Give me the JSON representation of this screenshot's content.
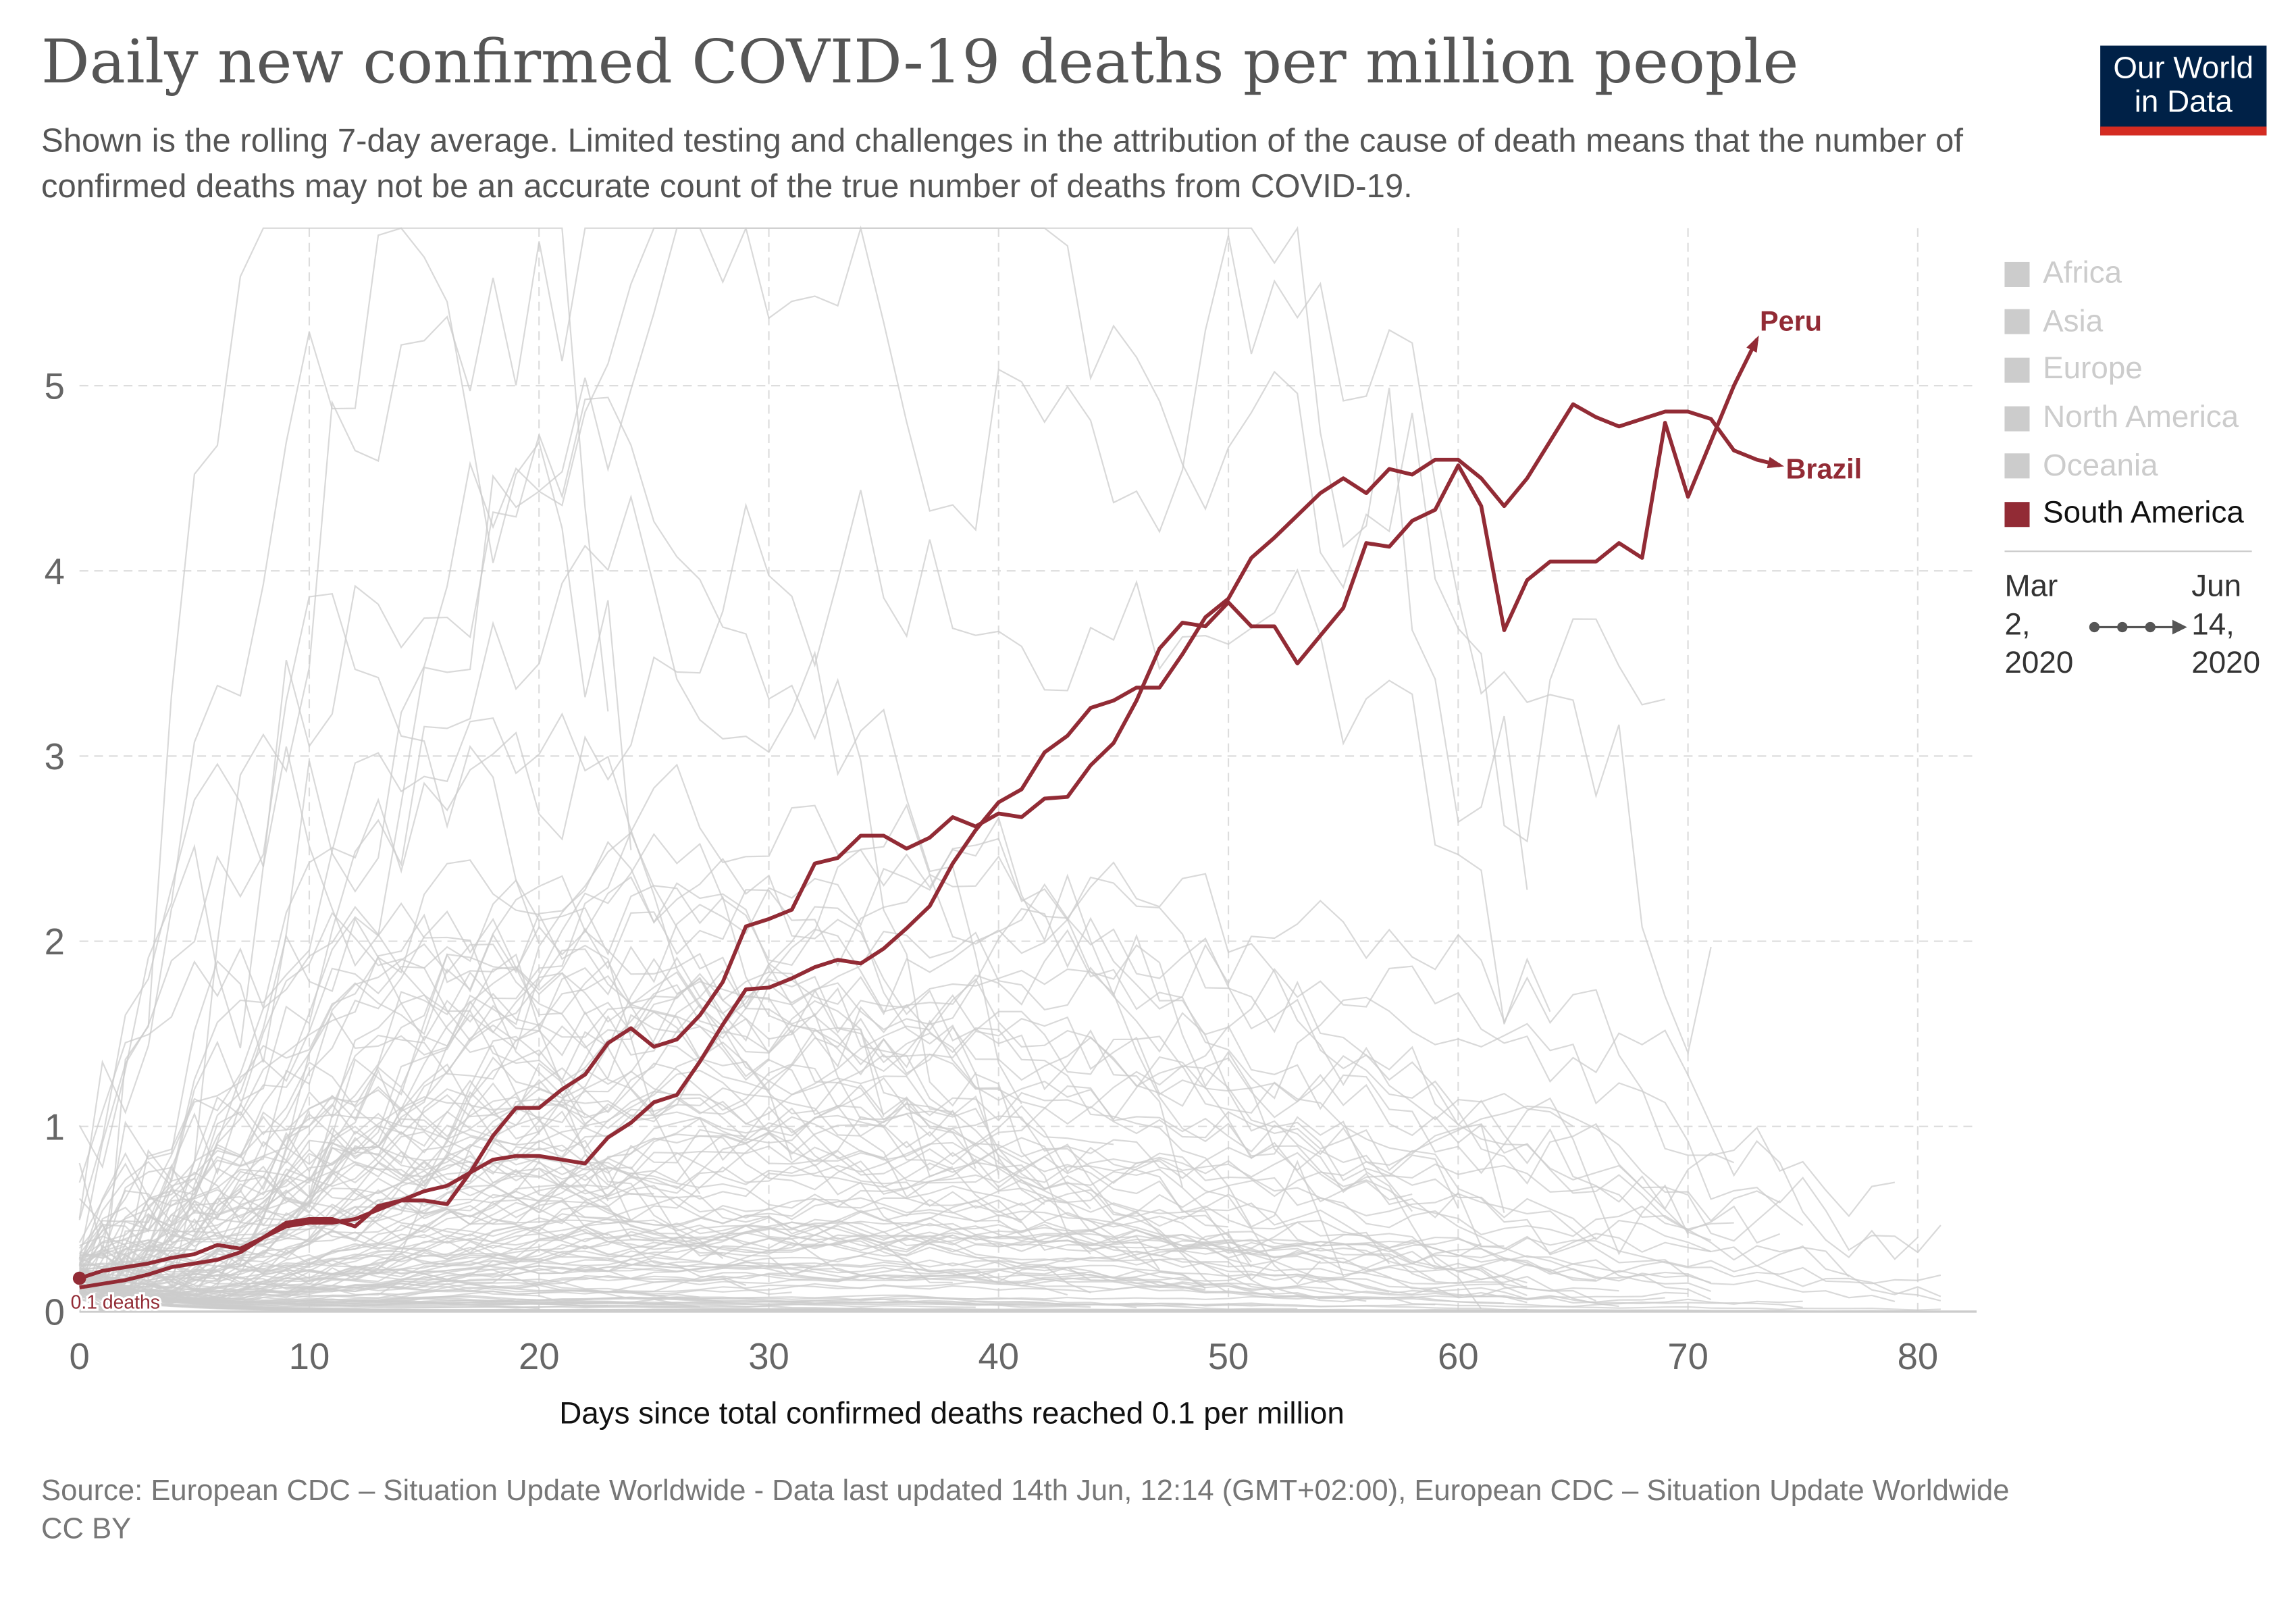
{
  "header": {
    "title": "Daily new confirmed COVID-19 deaths per million people",
    "subtitle": "Shown is the rolling 7-day average. Limited testing and challenges in the attribution of the cause of death means that the number of confirmed deaths may not be an accurate count of the true number of deaths from COVID-19.",
    "logo_line1": "Our World",
    "logo_line2": "in Data"
  },
  "legend": {
    "items": [
      {
        "label": "Africa",
        "active": false
      },
      {
        "label": "Asia",
        "active": false
      },
      {
        "label": "Europe",
        "active": false
      },
      {
        "label": "North America",
        "active": false
      },
      {
        "label": "Oceania",
        "active": false
      },
      {
        "label": "South America",
        "active": true
      }
    ]
  },
  "timeline": {
    "start": "Mar 2, 2020",
    "end": "Jun 14, 2020"
  },
  "chart_data": {
    "type": "line",
    "title": "Daily new confirmed COVID-19 deaths per million people",
    "xlabel": "Days since total confirmed deaths reached 0.1 per million",
    "ylabel": "",
    "xlim": [
      0,
      82
    ],
    "ylim": [
      0,
      5.8
    ],
    "xticks": [
      "0",
      "10",
      "20",
      "30",
      "40",
      "50",
      "60",
      "70",
      "80"
    ],
    "yticks": [
      "0",
      "1",
      "2",
      "3",
      "4",
      "5"
    ],
    "grid": true,
    "start_annotation": "0.1 deaths",
    "highlight_color": "#922b35",
    "background_color": "#cccccc",
    "series": [
      {
        "name": "Peru",
        "values": [
          0.18,
          0.22,
          0.24,
          0.26,
          0.29,
          0.31,
          0.36,
          0.34,
          0.4,
          0.48,
          0.5,
          0.5,
          0.46,
          0.57,
          0.6,
          0.6,
          0.58,
          0.75,
          0.95,
          1.1,
          1.1,
          1.2,
          1.28,
          1.45,
          1.53,
          1.43,
          1.47,
          1.6,
          1.78,
          2.08,
          2.12,
          2.17,
          2.42,
          2.45,
          2.57,
          2.57,
          2.5,
          2.56,
          2.67,
          2.62,
          2.69,
          2.67,
          2.77,
          2.78,
          2.95,
          3.07,
          3.3,
          3.58,
          3.72,
          3.7,
          3.83,
          3.7,
          3.7,
          3.5,
          3.65,
          3.8,
          4.15,
          4.13,
          4.27,
          4.33,
          4.57,
          4.35,
          3.68,
          3.95,
          4.05,
          4.05,
          4.05,
          4.15,
          4.07,
          4.8,
          4.4,
          4.7,
          5.0,
          5.25
        ]
      },
      {
        "name": "Brazil",
        "values": [
          0.13,
          0.15,
          0.17,
          0.2,
          0.24,
          0.26,
          0.28,
          0.32,
          0.4,
          0.46,
          0.48,
          0.48,
          0.5,
          0.55,
          0.6,
          0.65,
          0.68,
          0.75,
          0.82,
          0.84,
          0.84,
          0.82,
          0.8,
          0.94,
          1.02,
          1.13,
          1.17,
          1.35,
          1.55,
          1.74,
          1.75,
          1.8,
          1.86,
          1.9,
          1.88,
          1.96,
          2.07,
          2.19,
          2.42,
          2.6,
          2.75,
          2.82,
          3.02,
          3.11,
          3.26,
          3.3,
          3.37,
          3.37,
          3.55,
          3.75,
          3.85,
          4.07,
          4.18,
          4.3,
          4.42,
          4.5,
          4.42,
          4.55,
          4.52,
          4.6,
          4.6,
          4.5,
          4.35,
          4.5,
          4.7,
          4.9,
          4.83,
          4.78,
          4.82,
          4.86,
          4.86,
          4.82,
          4.65,
          4.6,
          4.57
        ]
      }
    ]
  },
  "footer": {
    "source": "Source: European CDC – Situation Update Worldwide - Data last updated 14th Jun, 12:14 (GMT+02:00), European CDC – Situation Update Worldwide",
    "license": "CC BY"
  }
}
